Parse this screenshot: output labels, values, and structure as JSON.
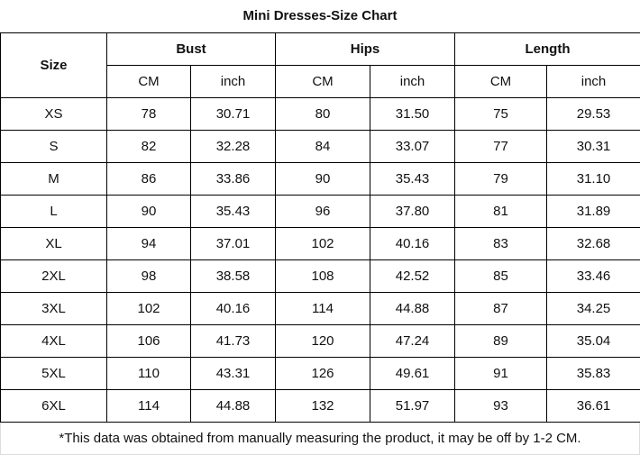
{
  "title": "Mini Dresses-Size Chart",
  "headers": {
    "size": "Size",
    "groups": [
      "Bust",
      "Hips",
      "Length"
    ],
    "units": [
      "CM",
      "inch",
      "CM",
      "inch",
      "CM",
      "inch"
    ]
  },
  "rows": [
    [
      "XS",
      "78",
      "30.71",
      "80",
      "31.50",
      "75",
      "29.53"
    ],
    [
      "S",
      "82",
      "32.28",
      "84",
      "33.07",
      "77",
      "30.31"
    ],
    [
      "M",
      "86",
      "33.86",
      "90",
      "35.43",
      "79",
      "31.10"
    ],
    [
      "L",
      "90",
      "35.43",
      "96",
      "37.80",
      "81",
      "31.89"
    ],
    [
      "XL",
      "94",
      "37.01",
      "102",
      "40.16",
      "83",
      "32.68"
    ],
    [
      "2XL",
      "98",
      "38.58",
      "108",
      "42.52",
      "85",
      "33.46"
    ],
    [
      "3XL",
      "102",
      "40.16",
      "114",
      "44.88",
      "87",
      "34.25"
    ],
    [
      "4XL",
      "106",
      "41.73",
      "120",
      "47.24",
      "89",
      "35.04"
    ],
    [
      "5XL",
      "110",
      "43.31",
      "126",
      "49.61",
      "91",
      "35.83"
    ],
    [
      "6XL",
      "114",
      "44.88",
      "132",
      "51.97",
      "93",
      "36.61"
    ]
  ],
  "footnote": "*This data was obtained from manually measuring the product, it may be off by 1-2 CM."
}
